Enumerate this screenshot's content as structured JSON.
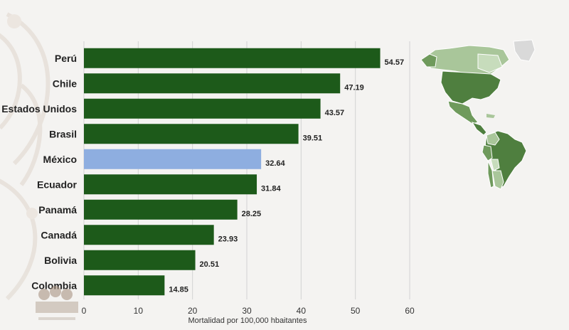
{
  "chart_data": {
    "type": "bar",
    "orientation": "horizontal",
    "categories": [
      "Perú",
      "Chile",
      "Estados Unidos",
      "Brasil",
      "México",
      "Ecuador",
      "Panamá",
      "Canadá",
      "Bolivia",
      "Colombia"
    ],
    "values": [
      54.57,
      47.19,
      43.57,
      39.51,
      32.64,
      31.84,
      28.25,
      23.93,
      20.51,
      14.85
    ],
    "value_labels": [
      "54.57",
      "47.19",
      "43.57",
      "39.51",
      "32.64",
      "31.84",
      "28.25",
      "23.93",
      "20.51",
      "14.85"
    ],
    "xlabel": "Mortalidad por 100,000 hbaitantes",
    "xlim": [
      0,
      60
    ],
    "xticks": [
      "0",
      "10",
      "20",
      "30",
      "40",
      "50",
      "60"
    ],
    "grid": "vertical",
    "colors": {
      "bar": "#1d5a1a",
      "highlight": "#8eaee0",
      "highlight_category": "México"
    }
  },
  "map": {
    "description_icon": "americas-map-icon",
    "colors": {
      "dark": "#4f7f3f",
      "mid": "#6f9a5c",
      "light": "#a9c69a",
      "pale": "#c7dcbc",
      "gray": "#d9d9d9"
    }
  }
}
